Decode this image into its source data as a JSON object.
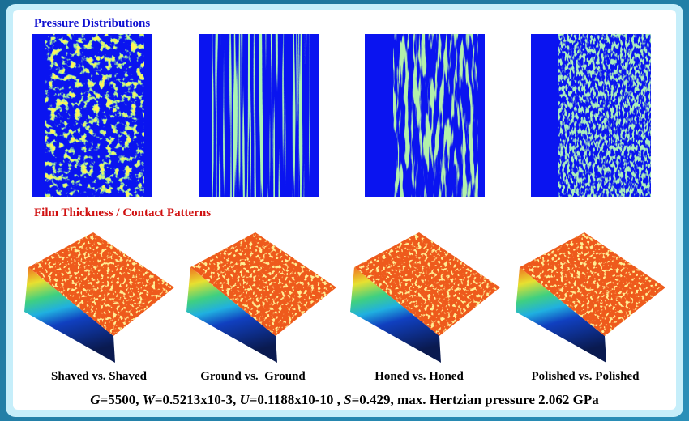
{
  "pressure_title": "Pressure Distributions",
  "film_title": "Film Thickness / Contact Patterns",
  "captions": [
    "Shaved vs. Shaved",
    "Ground vs.  Ground",
    "Honed vs. Honed",
    "Polished vs. Polished"
  ],
  "footer": [
    "G",
    "=5500, ",
    "W",
    "=0.5213x10-3, ",
    "U",
    "=0.1188x10-10 , ",
    "S",
    "=0.429, max. Hertzian pressure 2.062 GPa"
  ]
}
